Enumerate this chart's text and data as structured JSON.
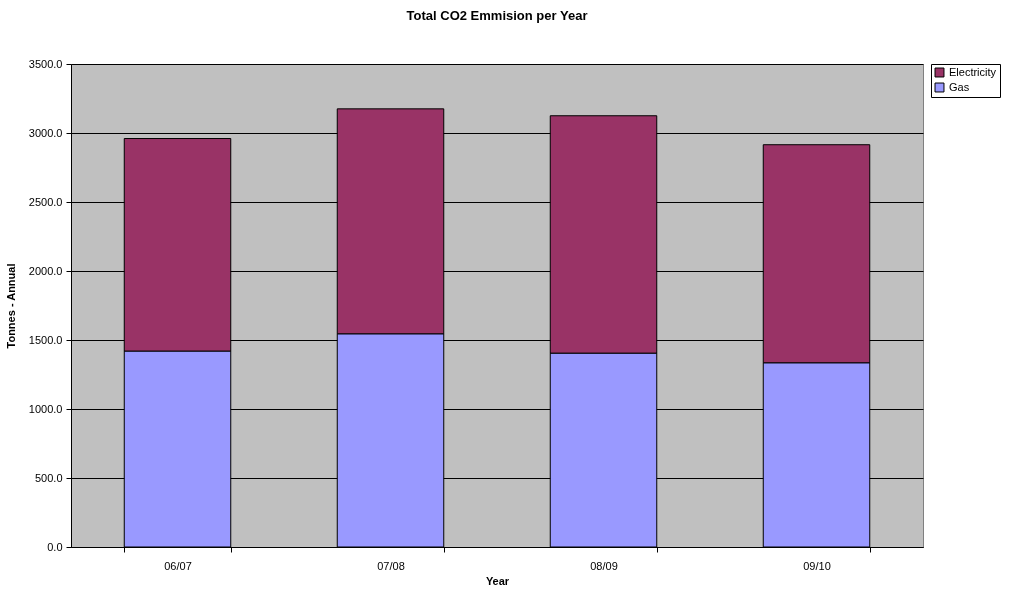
{
  "chart_data": {
    "type": "bar",
    "title": "Total CO2 Emmision per Year",
    "xlabel": "Year",
    "ylabel": "Tonnes - Annual",
    "categories": [
      "06/07",
      "07/08",
      "08/09",
      "09/10"
    ],
    "stacked": true,
    "series": [
      {
        "name": "Gas",
        "color": "#9999ff",
        "values": [
          1420,
          1545,
          1405,
          1335
        ]
      },
      {
        "name": "Electricity",
        "color": "#993366",
        "values": [
          1540,
          1630,
          1720,
          1580
        ]
      }
    ],
    "ylim": [
      0,
      3500
    ],
    "yticks": [
      {
        "value": 0,
        "label": "0.0"
      },
      {
        "value": 500,
        "label": "500.0"
      },
      {
        "value": 1000,
        "label": "1000.0"
      },
      {
        "value": 1500,
        "label": "1500.0"
      },
      {
        "value": 2000,
        "label": "2000.0"
      },
      {
        "value": 2500,
        "label": "2500.0"
      },
      {
        "value": 3000,
        "label": "3000.0"
      },
      {
        "value": 3500,
        "label": "3500.0"
      }
    ],
    "grid": "y",
    "legend": "right"
  }
}
